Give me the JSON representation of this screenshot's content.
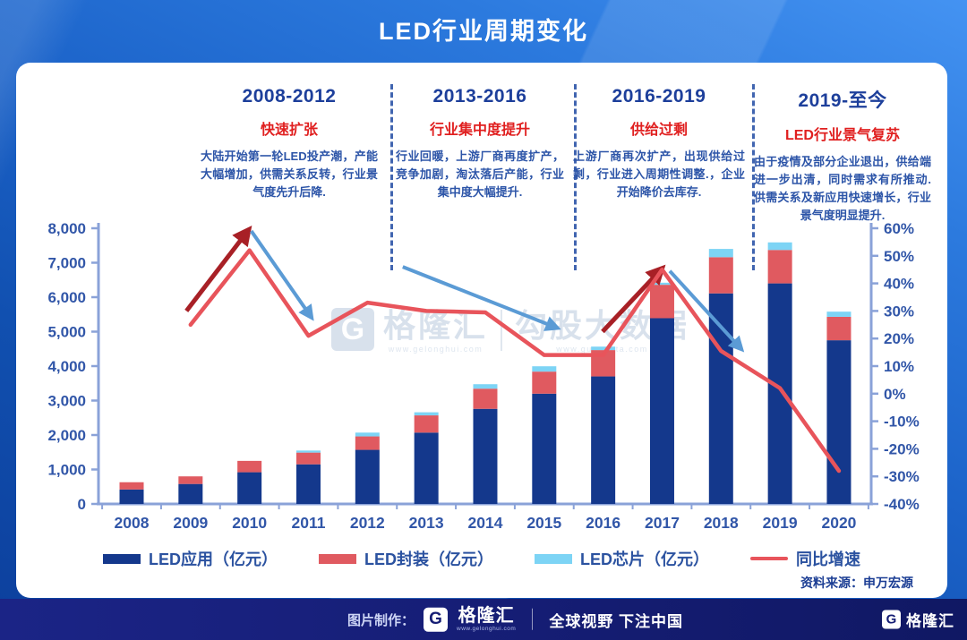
{
  "header": {
    "title": "LED行业周期变化"
  },
  "sections": [
    {
      "period": "2008-2012",
      "subtitle": "快速扩张",
      "body": "大陆开始第一轮LED投产潮，产能大幅增加，供需关系反转，行业景气度先升后降."
    },
    {
      "period": "2013-2016",
      "subtitle": "行业集中度提升",
      "body": "行业回暖，上游厂商再度扩产，竞争加剧，淘汰落后产能，行业集中度大幅提升."
    },
    {
      "period": "2016-2019",
      "subtitle": "供给过剩",
      "body": "上游厂商再次扩产，出现供给过剩，行业进入周期性调整.，企业开始降价去库存."
    },
    {
      "period": "2019-至今",
      "subtitle": "LED行业景气复苏",
      "body": "由于疫情及部分企业退出，供给端进一步出清，同时需求有所推动.供需关系及新应用快速增长，行业景气度明显提升."
    }
  ],
  "chart_data": {
    "type": "bar",
    "stacked": true,
    "title": "LED行业周期变化",
    "categories": [
      "2008",
      "2009",
      "2010",
      "2011",
      "2012",
      "2013",
      "2014",
      "2015",
      "2016",
      "2017",
      "2018",
      "2019",
      "2020"
    ],
    "series": [
      {
        "name": "LED应用（亿元）",
        "color": "#14388c",
        "values": [
          420,
          580,
          920,
          1150,
          1570,
          2070,
          2760,
          3200,
          3700,
          5390,
          6110,
          6400,
          4750
        ]
      },
      {
        "name": "LED封装（亿元）",
        "color": "#e05a60",
        "values": [
          210,
          220,
          330,
          340,
          390,
          500,
          585,
          640,
          765,
          970,
          1050,
          970,
          680
        ]
      },
      {
        "name": "LED芯片（亿元）",
        "color": "#7dd4f5",
        "values": [
          0,
          0,
          0,
          60,
          110,
          90,
          130,
          155,
          100,
          60,
          240,
          220,
          150
        ]
      }
    ],
    "line_series": {
      "name": "同比增速",
      "color": "#e8545b",
      "axis": "right",
      "values_pct": [
        null,
        25,
        52,
        21,
        33,
        30,
        29.5,
        14,
        14,
        45,
        15.5,
        2,
        -28
      ]
    },
    "left_axis": {
      "min": 0,
      "max": 8000,
      "step": 1000,
      "tick_labels": [
        "0",
        "1,000",
        "2,000",
        "3,000",
        "4,000",
        "5,000",
        "6,000",
        "7,000",
        "8,000"
      ]
    },
    "right_axis": {
      "min": -40,
      "max": 60,
      "step": 10,
      "tick_labels": [
        "-40%",
        "-30%",
        "-20%",
        "-10%",
        "0%",
        "10%",
        "20%",
        "30%",
        "40%",
        "50%",
        "60%"
      ]
    },
    "legend": [
      {
        "label": "LED应用（亿元）",
        "type": "bar",
        "color": "#14388c"
      },
      {
        "label": "LED封装（亿元）",
        "type": "bar",
        "color": "#e05a60"
      },
      {
        "label": "LED芯片（亿元）",
        "type": "bar",
        "color": "#7dd4f5"
      },
      {
        "label": "同比增速",
        "type": "line",
        "color": "#e8545b"
      }
    ],
    "legend_position": "bottom",
    "grid": false,
    "annotations": {
      "arrows": [
        {
          "kind": "rise-arrow",
          "color": "#a82026",
          "from": [
            0.93,
            30
          ],
          "to": [
            1.97,
            59
          ]
        },
        {
          "kind": "fall-arrow",
          "color": "#5b9bd5",
          "from": [
            2.03,
            59
          ],
          "to": [
            3.04,
            28
          ]
        },
        {
          "kind": "fall-arrow",
          "color": "#5b9bd5",
          "from": [
            4.6,
            46
          ],
          "to": [
            7.2,
            24
          ]
        },
        {
          "kind": "rise-arrow",
          "color": "#a82026",
          "from": [
            7.99,
            22.5
          ],
          "to": [
            8.98,
            45
          ]
        },
        {
          "kind": "fall-arrow",
          "color": "#5b9bd5",
          "from": [
            9.13,
            44.5
          ],
          "to": [
            10.33,
            16.5
          ]
        }
      ]
    }
  },
  "watermark": {
    "logo_letter": "G",
    "brand": "格隆汇",
    "brand_url": "www.gelonghui.com",
    "partner": "勾股大数据",
    "partner_url": "www.gugudata.com"
  },
  "source": {
    "text": "资料来源：申万宏源"
  },
  "footer": {
    "made_by": "图片制作：",
    "logo_letter": "G",
    "brand": "格隆汇",
    "brand_url": "www.gelonghui.com",
    "slogan": "全球视野 下注中国",
    "corner_logo_letter": "G",
    "corner_brand": "格隆汇"
  }
}
